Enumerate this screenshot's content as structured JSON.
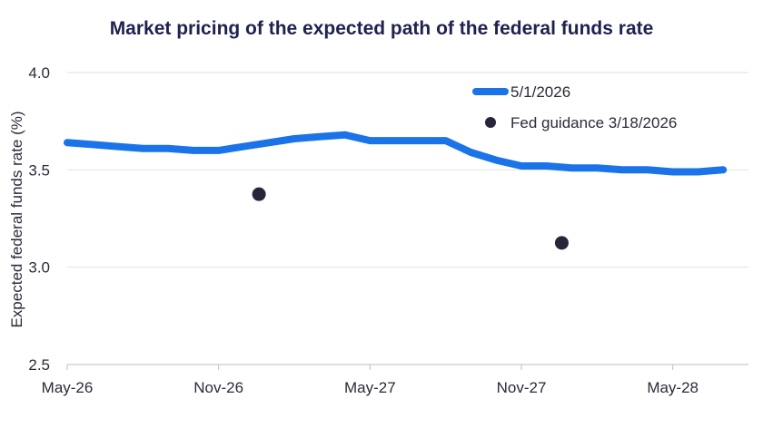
{
  "chart_data": {
    "type": "line",
    "title": "Market pricing of the expected path of the federal funds rate",
    "xlabel": "",
    "ylabel": "Expected federal funds rate (%)",
    "ylim": [
      2.5,
      4.0
    ],
    "yticks": [
      "2.5",
      "3.0",
      "3.5",
      "4.0"
    ],
    "xticks": [
      "May-26",
      "Nov-26",
      "May-27",
      "Nov-27",
      "May-28"
    ],
    "xtick_months": [
      0,
      6,
      12,
      18,
      24
    ],
    "xlim_months": [
      0,
      27
    ],
    "grid": "horizontal",
    "legend_position": "top-right",
    "series": [
      {
        "name": "5/1/2026",
        "kind": "line",
        "color": "#1a73e8",
        "x_labels": [
          "May-26",
          "Jun-26",
          "Jul-26",
          "Aug-26",
          "Sep-26",
          "Oct-26",
          "Nov-26",
          "Dec-26",
          "Jan-27",
          "Feb-27",
          "Mar-27",
          "Apr-27",
          "May-27",
          "Jun-27",
          "Jul-27",
          "Aug-27",
          "Sep-27",
          "Oct-27",
          "Nov-27",
          "Dec-27",
          "Jan-28",
          "Feb-28",
          "Mar-28",
          "Apr-28",
          "May-28",
          "Jun-28",
          "Jul-28"
        ],
        "x_months": [
          0,
          1,
          2,
          3,
          4,
          5,
          6,
          7,
          8,
          9,
          10,
          11,
          12,
          13,
          14,
          15,
          16,
          17,
          18,
          19,
          20,
          21,
          22,
          23,
          24,
          25,
          26
        ],
        "values": [
          3.64,
          3.63,
          3.62,
          3.61,
          3.61,
          3.6,
          3.6,
          3.62,
          3.64,
          3.66,
          3.67,
          3.68,
          3.65,
          3.65,
          3.65,
          3.65,
          3.59,
          3.55,
          3.52,
          3.52,
          3.51,
          3.51,
          3.5,
          3.5,
          3.49,
          3.49,
          3.5
        ]
      },
      {
        "name": "Fed guidance 3/18/2026",
        "kind": "scatter",
        "color": "#262638",
        "x_labels": [
          "Dec-26",
          "Dec-27"
        ],
        "x_months": [
          7.6,
          19.6
        ],
        "values": [
          3.375,
          3.125
        ]
      }
    ]
  }
}
